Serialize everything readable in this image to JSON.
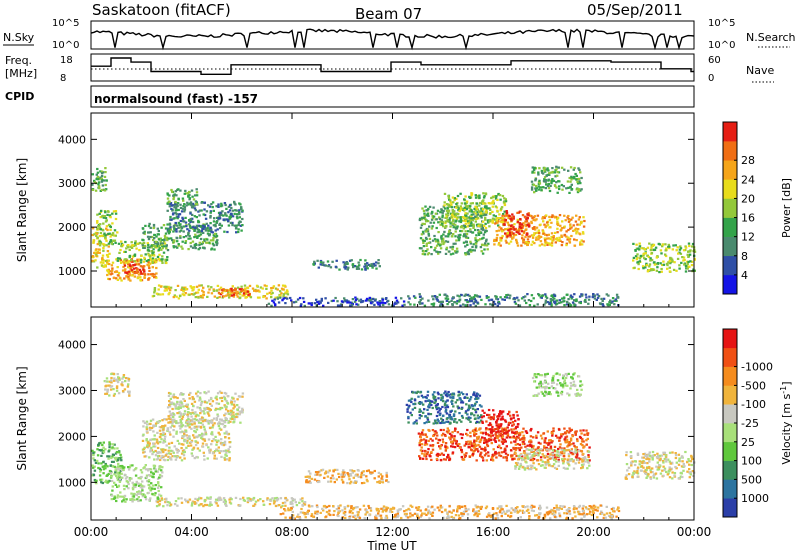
{
  "header": {
    "station": "Saskatoon (fitACF)",
    "beam": "Beam 07",
    "date": "05/Sep/2011"
  },
  "aux": {
    "nsky_label": "N.Sky",
    "nsearch_label": "N.Search",
    "freq_label_line1": "Freq.",
    "freq_label_line2": "[MHz]",
    "nave_label": "Nave",
    "cpid_label": "CPID",
    "cpid_text": "normalsound (fast) -157",
    "nsky_ticks": [
      "10^5",
      "10^0"
    ],
    "nsearch_ticks": [
      "10^5",
      "10^0"
    ],
    "freq_ticks": [
      "18",
      "8"
    ],
    "nave_ticks": [
      "60",
      "0"
    ]
  },
  "chart_data": [
    {
      "type": "heatmap",
      "title": "",
      "xlabel": "",
      "ylabel": "Slant Range [km]",
      "xlim": [
        0,
        24
      ],
      "ylim": [
        180,
        4600
      ],
      "x_ticks": [
        "00:00",
        "04:00",
        "08:00",
        "12:00",
        "16:00",
        "20:00",
        "00:00"
      ],
      "y_ticks": [
        1000,
        2000,
        3000,
        4000
      ],
      "colorbar": {
        "label": "Power [dB]",
        "ticks": [
          4,
          8,
          12,
          16,
          20,
          24,
          28
        ],
        "colors": [
          "#1414e6",
          "#2f4fa6",
          "#4a8a6e",
          "#33a34a",
          "#93c83a",
          "#e8dc1c",
          "#f5a51a",
          "#f06e14",
          "#e61e14"
        ]
      },
      "patches": [
        {
          "x0": 0.0,
          "x1": 0.7,
          "y0": 1100,
          "y1": 2000,
          "level": 5
        },
        {
          "x0": 0.2,
          "x1": 1.0,
          "y0": 1600,
          "y1": 2400,
          "level": 4
        },
        {
          "x0": 0.6,
          "x1": 2.6,
          "y0": 800,
          "y1": 1300,
          "level": 6
        },
        {
          "x0": 1.3,
          "x1": 2.1,
          "y0": 950,
          "y1": 1250,
          "level": 8
        },
        {
          "x0": 1.0,
          "x1": 3.0,
          "y0": 1200,
          "y1": 1700,
          "level": 4
        },
        {
          "x0": 2.0,
          "x1": 5.0,
          "y0": 1500,
          "y1": 2100,
          "level": 3
        },
        {
          "x0": 3.0,
          "x1": 6.0,
          "y0": 1900,
          "y1": 2600,
          "level": 2
        },
        {
          "x0": 3.0,
          "x1": 4.2,
          "y0": 2500,
          "y1": 2900,
          "level": 3
        },
        {
          "x0": 0.0,
          "x1": 0.6,
          "y0": 2800,
          "y1": 3400,
          "level": 3
        },
        {
          "x0": 2.4,
          "x1": 7.8,
          "y0": 400,
          "y1": 700,
          "level": 5
        },
        {
          "x0": 5.0,
          "x1": 6.3,
          "y0": 430,
          "y1": 620,
          "level": 7
        },
        {
          "x0": 7.0,
          "x1": 12.5,
          "y0": 230,
          "y1": 420,
          "level": 1
        },
        {
          "x0": 8.8,
          "x1": 11.5,
          "y0": 1050,
          "y1": 1280,
          "level": 2
        },
        {
          "x0": 13.0,
          "x1": 15.8,
          "y0": 1400,
          "y1": 2500,
          "level": 3
        },
        {
          "x0": 14.0,
          "x1": 16.5,
          "y0": 2000,
          "y1": 2800,
          "level": 4
        },
        {
          "x0": 16.0,
          "x1": 19.6,
          "y0": 1600,
          "y1": 2300,
          "level": 6
        },
        {
          "x0": 16.4,
          "x1": 17.4,
          "y0": 1800,
          "y1": 2400,
          "level": 8
        },
        {
          "x0": 17.5,
          "x1": 19.5,
          "y0": 2800,
          "y1": 3400,
          "level": 3
        },
        {
          "x0": 21.5,
          "x1": 24.0,
          "y0": 1000,
          "y1": 1650,
          "level": 4
        },
        {
          "x0": 12.5,
          "x1": 21.0,
          "y0": 230,
          "y1": 500,
          "level": 2
        }
      ]
    },
    {
      "type": "heatmap",
      "title": "",
      "xlabel": "Time UT",
      "ylabel": "Slant Range [km]",
      "xlim": [
        0,
        24
      ],
      "ylim": [
        180,
        4600
      ],
      "x_ticks": [
        "00:00",
        "04:00",
        "08:00",
        "12:00",
        "16:00",
        "20:00",
        "00:00"
      ],
      "y_ticks": [
        1000,
        2000,
        3000,
        4000
      ],
      "colorbar": {
        "label": "Velocity [m s^-1]",
        "ticks": [
          "1000",
          "500",
          "100",
          "25",
          "-25",
          "-100",
          "-500",
          "-1000"
        ],
        "colors": [
          "#2b3fa8",
          "#2c74a0",
          "#3c8f5e",
          "#5fc83c",
          "#a8e07a",
          "#c8c8c0",
          "#f0b43c",
          "#f58c1e",
          "#f05014",
          "#e61414"
        ]
      },
      "patches": [
        {
          "x0": 0.0,
          "x1": 1.2,
          "y0": 1000,
          "y1": 1900,
          "level": 3
        },
        {
          "x0": 0.7,
          "x1": 2.8,
          "y0": 600,
          "y1": 1400,
          "level": 4
        },
        {
          "x0": 2.0,
          "x1": 5.5,
          "y0": 1500,
          "y1": 2400,
          "level": 5
        },
        {
          "x0": 3.0,
          "x1": 6.0,
          "y0": 2300,
          "y1": 3000,
          "level": 5
        },
        {
          "x0": 0.5,
          "x1": 1.5,
          "y0": 2900,
          "y1": 3400,
          "level": 5
        },
        {
          "x0": 2.5,
          "x1": 8.5,
          "y0": 500,
          "y1": 700,
          "level": 5
        },
        {
          "x0": 8.5,
          "x1": 11.8,
          "y0": 1000,
          "y1": 1300,
          "level": 6
        },
        {
          "x0": 7.5,
          "x1": 12.5,
          "y0": 230,
          "y1": 520,
          "level": 6
        },
        {
          "x0": 12.5,
          "x1": 15.5,
          "y0": 2300,
          "y1": 3000,
          "level": 1
        },
        {
          "x0": 13.0,
          "x1": 19.8,
          "y0": 1500,
          "y1": 2200,
          "level": 8
        },
        {
          "x0": 15.5,
          "x1": 17.0,
          "y0": 1900,
          "y1": 2600,
          "level": 9
        },
        {
          "x0": 16.8,
          "x1": 19.8,
          "y0": 1300,
          "y1": 1750,
          "level": 5
        },
        {
          "x0": 17.5,
          "x1": 19.5,
          "y0": 2900,
          "y1": 3400,
          "level": 4
        },
        {
          "x0": 21.2,
          "x1": 24.0,
          "y0": 1100,
          "y1": 1700,
          "level": 5
        },
        {
          "x0": 12.5,
          "x1": 21.0,
          "y0": 230,
          "y1": 520,
          "level": 6
        }
      ]
    }
  ]
}
